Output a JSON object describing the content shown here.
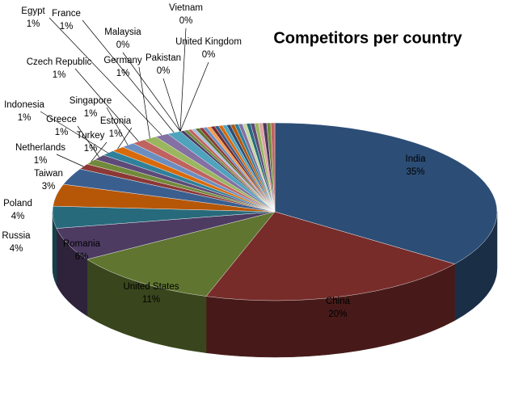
{
  "chart_data": {
    "type": "pie",
    "title": "Competitors per country",
    "categories": [
      "India",
      "China",
      "United States",
      "Romania",
      "Russia",
      "Poland",
      "Taiwan",
      "Netherlands",
      "Turkey",
      "Greece",
      "Indonesia",
      "Estonia",
      "Singapore",
      "Czech Republic",
      "Germany",
      "Egypt",
      "France",
      "Malaysia",
      "Pakistan",
      "Vietnam",
      "United Kingdom"
    ],
    "values": [
      35,
      20,
      11,
      6,
      4,
      4,
      3,
      1,
      1,
      1,
      1,
      1,
      1,
      1,
      1,
      1,
      1,
      0,
      0,
      0,
      0
    ],
    "value_labels": [
      "35%",
      "20%",
      "11%",
      "6%",
      "4%",
      "4%",
      "3%",
      "1%",
      "1%",
      "1%",
      "1%",
      "1%",
      "1%",
      "1%",
      "1%",
      "1%",
      "1%",
      "0%",
      "0%",
      "0%",
      "0%"
    ],
    "colors": [
      "#2c4d75",
      "#772c2a",
      "#5f7530",
      "#4d3b62",
      "#276a7c",
      "#b65708",
      "#3a5f8f",
      "#8c3836",
      "#71893a",
      "#5e4a78",
      "#2f809a",
      "#d96a0b",
      "#6b8ec0",
      "#c06260",
      "#9ab65f",
      "#8470a3",
      "#4fa3bd",
      "#f59a4c",
      "#a9bfde",
      "#dca3a2",
      "#c4d6a0"
    ]
  }
}
